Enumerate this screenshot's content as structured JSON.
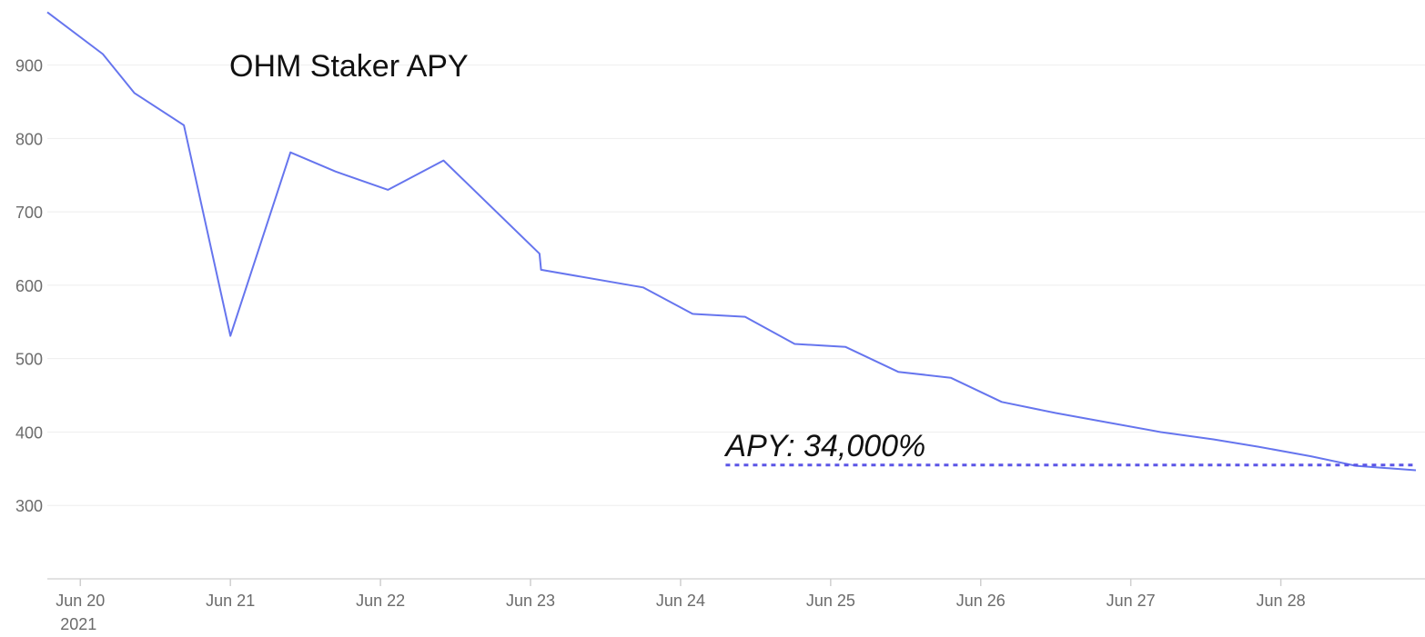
{
  "chart_data": {
    "type": "line",
    "title": "OHM Staker APY",
    "xlabel": "",
    "ylabel": "",
    "year_label": "2021",
    "x_tick_labels": [
      "Jun 20",
      "Jun 21",
      "Jun 22",
      "Jun 23",
      "Jun 24",
      "Jun 25",
      "Jun 26",
      "Jun 27",
      "Jun 28"
    ],
    "x_tick_days": [
      20,
      21,
      22,
      23,
      24,
      25,
      26,
      27,
      28
    ],
    "xlim": [
      19.78,
      28.9
    ],
    "ylim": [
      200,
      975
    ],
    "y_ticks": [
      300,
      400,
      500,
      600,
      700,
      800,
      900
    ],
    "y_tick_labels": [
      "300",
      "400",
      "500",
      "600",
      "700",
      "800",
      "900"
    ],
    "grid": true,
    "colors": {
      "line": "#6675ee",
      "reference": "#5b55e6",
      "grid": "#eeeeee",
      "axis": "#e2e2e2"
    },
    "series": [
      {
        "name": "OHM Staker APY",
        "x": [
          19.78,
          20.15,
          20.36,
          20.69,
          21.0,
          21.4,
          21.7,
          22.05,
          22.42,
          23.06,
          23.07,
          23.75,
          24.08,
          24.43,
          24.76,
          25.1,
          25.45,
          25.8,
          26.14,
          26.5,
          26.85,
          27.2,
          27.55,
          27.85,
          28.2,
          28.5,
          28.9
        ],
        "y": [
          972,
          915,
          862,
          818,
          531,
          781,
          755,
          730,
          770,
          643,
          621,
          597,
          561,
          557,
          520,
          516,
          482,
          474,
          441,
          426,
          413,
          400,
          390,
          380,
          367,
          354,
          348
        ]
      }
    ],
    "reference_line": {
      "label": "APY: 34,000%",
      "y": 355,
      "x_start": 24.3,
      "x_end": 28.9
    }
  }
}
